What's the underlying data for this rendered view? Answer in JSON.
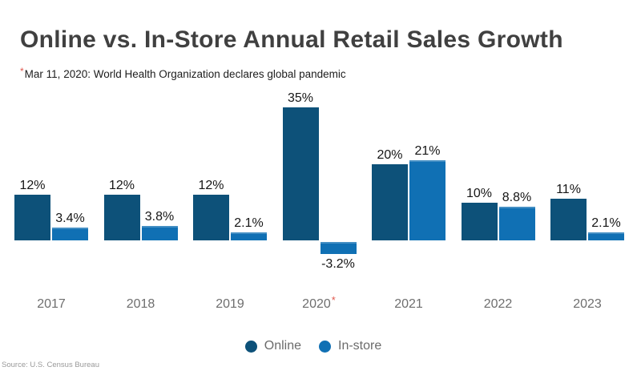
{
  "title": "Online vs. In-Store Annual Retail Sales Growth",
  "annotation": {
    "marker": "*",
    "text": "Mar 11, 2020: World Health Organization declares global pandemic",
    "marker_color": "#e0584e"
  },
  "source": "Source: U.S. Census Bureau",
  "legend": [
    {
      "name": "Online",
      "color": "#0d5179"
    },
    {
      "name": "In-store",
      "color": "#1070b4"
    }
  ],
  "chart_data": {
    "type": "bar",
    "title": "Online vs. In-Store Annual Retail Sales Growth",
    "categories": [
      "2017",
      "2018",
      "2019",
      "2020",
      "2021",
      "2022",
      "2023"
    ],
    "series": [
      {
        "name": "Online",
        "color": "#0d5179",
        "values": [
          12,
          12,
          12,
          35,
          20,
          10,
          11
        ],
        "labels": [
          "12%",
          "12%",
          "12%",
          "35%",
          "20%",
          "10%",
          "11%"
        ]
      },
      {
        "name": "In-store",
        "color": "#1070b4",
        "values": [
          3.4,
          3.8,
          2.1,
          -3.2,
          21,
          8.8,
          2.1
        ],
        "labels": [
          "3.4%",
          "3.8%",
          "2.1%",
          "-3.2%",
          "21%",
          "8.8%",
          "2.1%"
        ]
      }
    ],
    "flagged_category": "2020",
    "flag_marker": "*",
    "value_format": "percent",
    "xlabel": "",
    "ylabel": "",
    "ylim": [
      -5,
      38
    ],
    "gridlines": false,
    "y_axis_visible": false,
    "bar_value_labels": true,
    "legend_position": "bottom-center"
  }
}
